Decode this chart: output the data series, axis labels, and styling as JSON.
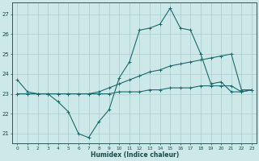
{
  "xlabel": "Humidex (Indice chaleur)",
  "bg_color": "#cce8e8",
  "grid_color": "#aacccc",
  "line_color": "#1a6b6b",
  "xlim": [
    -0.5,
    23.5
  ],
  "ylim": [
    20.5,
    27.6
  ],
  "yticks": [
    21,
    22,
    23,
    24,
    25,
    26,
    27
  ],
  "xticks": [
    0,
    1,
    2,
    3,
    4,
    5,
    6,
    7,
    8,
    9,
    10,
    11,
    12,
    13,
    14,
    15,
    16,
    17,
    18,
    19,
    20,
    21,
    22,
    23
  ],
  "line1_x": [
    0,
    1,
    2,
    3,
    4,
    5,
    6,
    7,
    8,
    9,
    10,
    11,
    12,
    13,
    14,
    15,
    16,
    17,
    18,
    19,
    20,
    21,
    22,
    23
  ],
  "line1_y": [
    23.7,
    23.1,
    23.0,
    23.0,
    22.6,
    22.1,
    21.0,
    20.8,
    21.6,
    22.2,
    23.8,
    24.6,
    26.2,
    26.3,
    26.5,
    27.3,
    26.3,
    26.2,
    25.0,
    23.5,
    23.6,
    23.1,
    23.1,
    23.2
  ],
  "line2_x": [
    0,
    1,
    2,
    3,
    4,
    5,
    6,
    7,
    8,
    9,
    10,
    11,
    12,
    13,
    14,
    15,
    16,
    17,
    18,
    19,
    20,
    21,
    22,
    23
  ],
  "line2_y": [
    23.0,
    23.0,
    23.0,
    23.0,
    23.0,
    23.0,
    23.0,
    23.0,
    23.0,
    23.0,
    23.1,
    23.1,
    23.1,
    23.2,
    23.2,
    23.3,
    23.3,
    23.3,
    23.4,
    23.4,
    23.4,
    23.4,
    23.1,
    23.2
  ],
  "line3_x": [
    0,
    1,
    2,
    3,
    4,
    5,
    6,
    7,
    8,
    9,
    10,
    11,
    12,
    13,
    14,
    15,
    16,
    17,
    18,
    19,
    20,
    21,
    22,
    23
  ],
  "line3_y": [
    23.0,
    23.0,
    23.0,
    23.0,
    23.0,
    23.0,
    23.0,
    23.0,
    23.1,
    23.3,
    23.5,
    23.7,
    23.9,
    24.1,
    24.2,
    24.4,
    24.5,
    24.6,
    24.7,
    24.8,
    24.9,
    25.0,
    23.2,
    23.2
  ]
}
